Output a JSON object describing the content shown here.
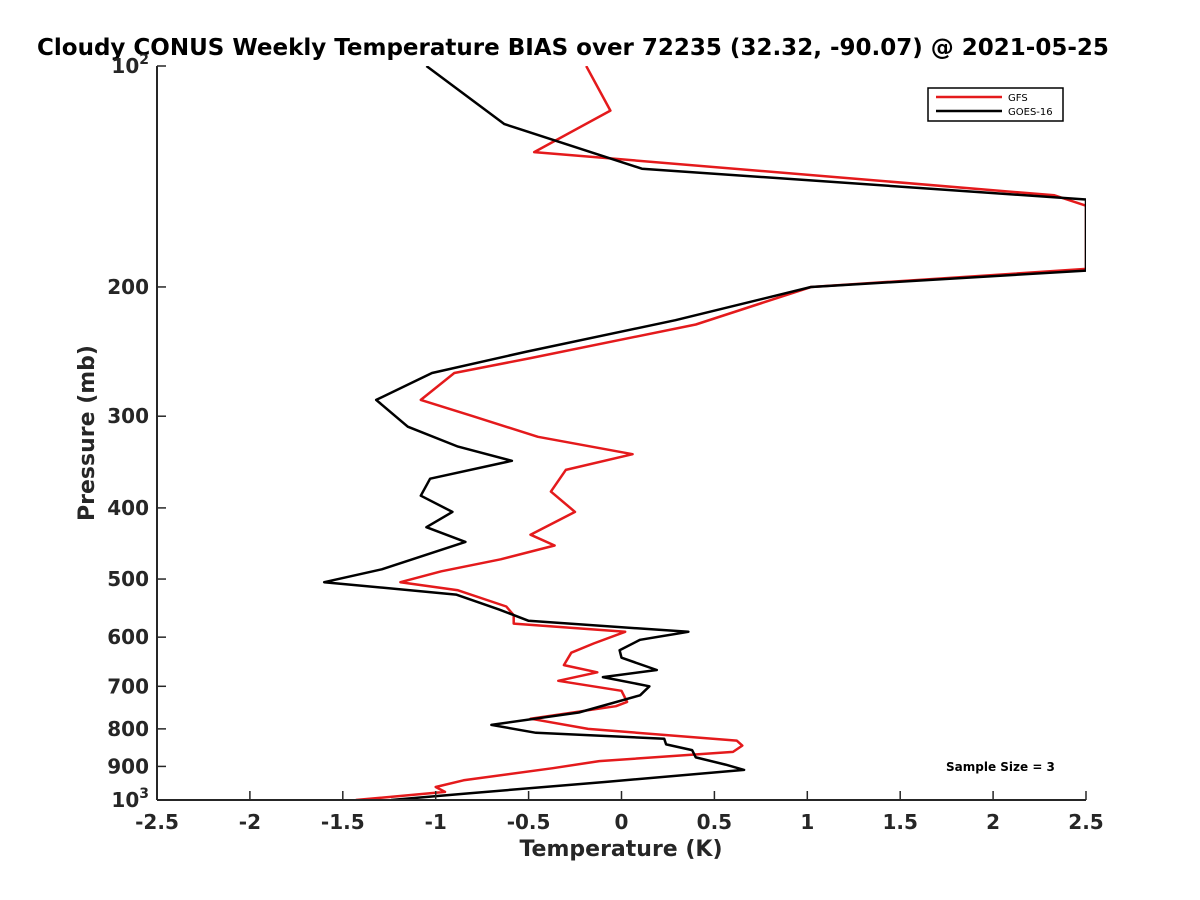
{
  "chart_data": {
    "type": "line",
    "title": "Cloudy CONUS Weekly Temperature BIAS over 72235 (32.32, -90.07) @ 2021-05-25",
    "xlabel": "Temperature (K)",
    "ylabel": "Pressure (mb)",
    "xlim": [
      -2.5,
      2.5
    ],
    "ylim": [
      100,
      1000
    ],
    "yscale": "log",
    "y_reversed": true,
    "grid": false,
    "legend_position": "top-right",
    "x_ticks": [
      "-2.5",
      "-2",
      "-1.5",
      "-1",
      "-0.5",
      "0",
      "0.5",
      "1",
      "1.5",
      "2",
      "2.5"
    ],
    "y_ticks": [
      {
        "value": 100,
        "base": "10",
        "exp": "2"
      },
      {
        "value": 200,
        "label": "200"
      },
      {
        "value": 300,
        "label": "300"
      },
      {
        "value": 400,
        "label": "400"
      },
      {
        "value": 500,
        "label": "500"
      },
      {
        "value": 600,
        "label": "600"
      },
      {
        "value": 700,
        "label": "700"
      },
      {
        "value": 800,
        "label": "800"
      },
      {
        "value": 900,
        "label": "900"
      },
      {
        "value": 1000,
        "base": "10",
        "exp": "3"
      }
    ],
    "series": [
      {
        "name": "GFS",
        "color": "#e41a1c",
        "points": [
          [
            -0.19,
            100
          ],
          [
            -0.06,
            115
          ],
          [
            -0.47,
            131
          ],
          [
            2.33,
            150
          ],
          [
            2.5,
            155
          ],
          [
            2.5,
            189
          ],
          [
            1.02,
            200
          ],
          [
            0.4,
            225
          ],
          [
            -0.49,
            250
          ],
          [
            -0.9,
            262
          ],
          [
            -1.08,
            285
          ],
          [
            -0.8,
            300
          ],
          [
            -0.45,
            320
          ],
          [
            0.06,
            338
          ],
          [
            -0.3,
            355
          ],
          [
            -0.38,
            380
          ],
          [
            -0.25,
            405
          ],
          [
            -0.49,
            435
          ],
          [
            -0.36,
            450
          ],
          [
            -0.65,
            470
          ],
          [
            -0.97,
            488
          ],
          [
            -1.19,
            505
          ],
          [
            -0.88,
            518
          ],
          [
            -0.62,
            545
          ],
          [
            -0.58,
            560
          ],
          [
            -0.58,
            575
          ],
          [
            0.02,
            590
          ],
          [
            -0.15,
            612
          ],
          [
            -0.27,
            630
          ],
          [
            -0.31,
            655
          ],
          [
            -0.13,
            670
          ],
          [
            -0.34,
            688
          ],
          [
            0.0,
            710
          ],
          [
            0.03,
            735
          ],
          [
            -0.03,
            745
          ],
          [
            -0.49,
            775
          ],
          [
            -0.18,
            800
          ],
          [
            0.62,
            830
          ],
          [
            0.65,
            843
          ],
          [
            0.6,
            860
          ],
          [
            -0.12,
            885
          ],
          [
            -0.37,
            905
          ],
          [
            -0.85,
            940
          ],
          [
            -1.0,
            960
          ],
          [
            -0.95,
            975
          ],
          [
            -1.43,
            1000
          ]
        ]
      },
      {
        "name": "GOES-16",
        "color": "#000000",
        "points": [
          [
            -1.05,
            100
          ],
          [
            -0.63,
            120
          ],
          [
            0.11,
            138
          ],
          [
            2.5,
            152
          ],
          [
            2.5,
            190
          ],
          [
            1.02,
            200
          ],
          [
            0.29,
            222
          ],
          [
            -0.51,
            245
          ],
          [
            -1.02,
            262
          ],
          [
            -1.32,
            285
          ],
          [
            -1.15,
            310
          ],
          [
            -0.88,
            330
          ],
          [
            -0.59,
            345
          ],
          [
            -1.03,
            365
          ],
          [
            -1.08,
            385
          ],
          [
            -0.91,
            405
          ],
          [
            -1.05,
            425
          ],
          [
            -0.84,
            445
          ],
          [
            -1.29,
            485
          ],
          [
            -1.6,
            505
          ],
          [
            -0.89,
            525
          ],
          [
            -0.66,
            550
          ],
          [
            -0.5,
            570
          ],
          [
            0.36,
            590
          ],
          [
            0.1,
            605
          ],
          [
            -0.01,
            625
          ],
          [
            0.0,
            640
          ],
          [
            0.19,
            665
          ],
          [
            -0.1,
            680
          ],
          [
            0.15,
            700
          ],
          [
            0.1,
            720
          ],
          [
            -0.23,
            760
          ],
          [
            -0.7,
            790
          ],
          [
            -0.46,
            810
          ],
          [
            0.23,
            825
          ],
          [
            0.24,
            840
          ],
          [
            0.38,
            855
          ],
          [
            0.4,
            875
          ],
          [
            0.56,
            895
          ],
          [
            0.66,
            910
          ],
          [
            -0.09,
            945
          ],
          [
            -0.84,
            980
          ],
          [
            -1.24,
            1000
          ]
        ]
      }
    ],
    "annotations": [
      {
        "text": "Sample Size = 3",
        "position": "bottom-right"
      }
    ]
  }
}
